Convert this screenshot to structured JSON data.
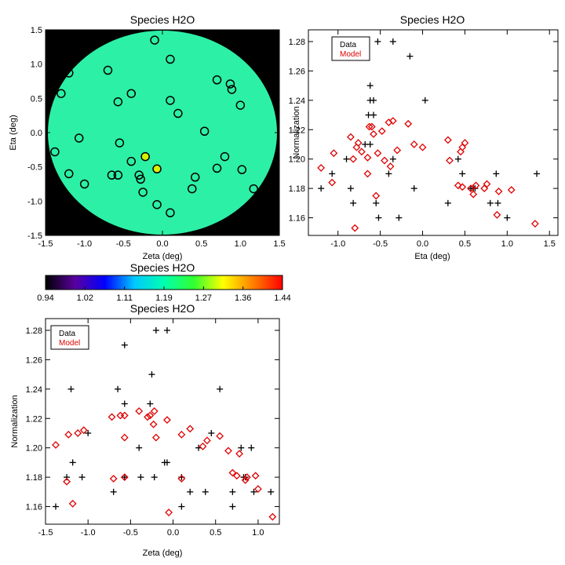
{
  "chart_data": [
    {
      "type": "scatter",
      "title": "Species H2O",
      "xlabel": "Zeta (deg)",
      "ylabel": "Eta (deg)",
      "xlim": [
        -1.5,
        1.5
      ],
      "ylim": [
        -1.5,
        1.5
      ],
      "x_ticks": [
        "-1.5",
        "-1.0",
        "-0.5",
        "0.0",
        "0.5",
        "1.0",
        "1.5"
      ],
      "y_ticks": [
        "-1.5",
        "-1.0",
        "-0.5",
        "0.0",
        "0.5",
        "1.0",
        "1.5"
      ],
      "background": "map colored by normalization, value ~1.15 (green) inside a circular field, black outside",
      "points": [
        [
          -0.1,
          1.35
        ],
        [
          0.1,
          1.07
        ],
        [
          -1.2,
          0.87
        ],
        [
          -0.7,
          0.91
        ],
        [
          0.7,
          0.77
        ],
        [
          0.87,
          0.71
        ],
        [
          0.89,
          0.63
        ],
        [
          -1.3,
          0.57
        ],
        [
          -0.4,
          0.57
        ],
        [
          -0.57,
          0.45
        ],
        [
          0.1,
          0.47
        ],
        [
          1.0,
          0.4
        ],
        [
          0.2,
          0.28
        ],
        [
          -1.07,
          -0.08
        ],
        [
          0.54,
          0.02
        ],
        [
          -0.55,
          -0.15
        ],
        [
          -1.38,
          -0.28
        ],
        [
          -0.22,
          -0.35
        ],
        [
          -0.4,
          -0.42
        ],
        [
          0.8,
          -0.35
        ],
        [
          0.7,
          -0.52
        ],
        [
          1.02,
          -0.54
        ],
        [
          -0.07,
          -0.53
        ],
        [
          -1.2,
          -0.6
        ],
        [
          -0.65,
          -0.62
        ],
        [
          -0.57,
          -0.62
        ],
        [
          -0.3,
          -0.62
        ],
        [
          -0.28,
          -0.68
        ],
        [
          0.42,
          -0.65
        ],
        [
          -1.0,
          -0.75
        ],
        [
          0.38,
          -0.82
        ],
        [
          -0.25,
          -0.87
        ],
        [
          1.17,
          -0.82
        ],
        [
          -0.07,
          -1.05
        ],
        [
          0.1,
          -1.17
        ]
      ]
    },
    {
      "type": "colorbar",
      "title": "Species H2O",
      "tick_labels": [
        "0.94",
        "1.02",
        "1.11",
        "1.19",
        "1.27",
        "1.36",
        "1.44"
      ],
      "range": [
        0.94,
        1.44
      ],
      "colormap": [
        "#000000",
        "#5a00a0",
        "#0000ff",
        "#00c8ff",
        "#00ffb0",
        "#30ff30",
        "#ffff00",
        "#ff8000",
        "#ff0000"
      ]
    },
    {
      "type": "scatter",
      "title": "Species H2O",
      "xlabel": "Eta (deg)",
      "ylabel": "Normalization",
      "xlim": [
        -1.35,
        1.6
      ],
      "ylim": [
        1.148,
        1.288
      ],
      "x_ticks": [
        "-1.0",
        "-0.5",
        "0.0",
        "0.5",
        "1.0",
        "1.5"
      ],
      "x_tick_values": [
        -1.0,
        -0.5,
        0.0,
        0.5,
        1.0,
        1.5
      ],
      "y_ticks": [
        "1.16",
        "1.18",
        "1.20",
        "1.22",
        "1.24",
        "1.26",
        "1.28"
      ],
      "y_tick_values": [
        1.16,
        1.18,
        1.2,
        1.22,
        1.24,
        1.26,
        1.28
      ],
      "legend": {
        "position": "top-left",
        "entries": [
          {
            "label": "Data",
            "color": "#000000"
          },
          {
            "label": "Model",
            "color": "#e00000"
          }
        ]
      },
      "series": [
        {
          "name": "Data",
          "color": "#000000",
          "marker": "plus",
          "points": [
            [
              -0.53,
              1.28
            ],
            [
              -0.35,
              1.28
            ],
            [
              -0.15,
              1.27
            ],
            [
              -0.62,
              1.25
            ],
            [
              -0.62,
              1.24
            ],
            [
              -0.58,
              1.24
            ],
            [
              0.03,
              1.24
            ],
            [
              -0.64,
              1.23
            ],
            [
              -0.58,
              1.23
            ],
            [
              -0.68,
              1.21
            ],
            [
              -0.62,
              1.21
            ],
            [
              -0.35,
              1.2
            ],
            [
              -0.4,
              1.19
            ],
            [
              0.42,
              1.2
            ],
            [
              -1.07,
              1.19
            ],
            [
              0.47,
              1.19
            ],
            [
              0.87,
              1.19
            ],
            [
              -1.2,
              1.18
            ],
            [
              -0.85,
              1.18
            ],
            [
              -0.1,
              1.18
            ],
            [
              0.57,
              1.18
            ],
            [
              0.6,
              1.18
            ],
            [
              0.62,
              1.18
            ],
            [
              -0.82,
              1.17
            ],
            [
              -0.55,
              1.17
            ],
            [
              0.3,
              1.17
            ],
            [
              0.8,
              1.17
            ],
            [
              0.89,
              1.17
            ],
            [
              -0.52,
              1.16
            ],
            [
              -0.28,
              1.16
            ],
            [
              1.0,
              1.16
            ],
            [
              1.35,
              1.19
            ],
            [
              -0.9,
              1.2
            ]
          ]
        },
        {
          "name": "Model",
          "color": "#e00000",
          "marker": "diamond",
          "points": [
            [
              -0.85,
              1.215
            ],
            [
              -0.76,
              1.211
            ],
            [
              -0.63,
              1.222
            ],
            [
              -0.6,
              1.222
            ],
            [
              -0.58,
              1.217
            ],
            [
              -0.48,
              1.219
            ],
            [
              -0.4,
              1.225
            ],
            [
              -0.35,
              1.226
            ],
            [
              -0.17,
              1.224
            ],
            [
              -0.1,
              1.21
            ],
            [
              0.0,
              1.208
            ],
            [
              -0.78,
              1.208
            ],
            [
              -0.72,
              1.205
            ],
            [
              -0.65,
              1.201
            ],
            [
              -0.53,
              1.204
            ],
            [
              -0.45,
              1.199
            ],
            [
              -0.38,
              1.195
            ],
            [
              -0.3,
              1.206
            ],
            [
              -0.65,
              1.19
            ],
            [
              -0.55,
              1.175
            ],
            [
              -0.82,
              1.2
            ],
            [
              -1.2,
              1.194
            ],
            [
              -1.07,
              1.184
            ],
            [
              -1.05,
              1.204
            ],
            [
              0.3,
              1.213
            ],
            [
              0.45,
              1.205
            ],
            [
              0.47,
              1.208
            ],
            [
              0.5,
              1.211
            ],
            [
              0.42,
              1.182
            ],
            [
              0.47,
              1.181
            ],
            [
              0.57,
              1.18
            ],
            [
              0.6,
              1.176
            ],
            [
              0.63,
              1.182
            ],
            [
              0.73,
              1.18
            ],
            [
              0.76,
              1.183
            ],
            [
              0.9,
              1.178
            ],
            [
              1.05,
              1.179
            ],
            [
              0.88,
              1.162
            ],
            [
              1.33,
              1.156
            ],
            [
              -0.8,
              1.153
            ],
            [
              0.32,
              1.199
            ]
          ]
        }
      ]
    },
    {
      "type": "scatter",
      "title": "Species H2O",
      "xlabel": "Zeta (deg)",
      "ylabel": "Normalization",
      "xlim": [
        -1.5,
        1.25
      ],
      "ylim": [
        1.148,
        1.288
      ],
      "x_ticks": [
        "-1.5",
        "-1.0",
        "-0.5",
        "0.0",
        "0.5",
        "1.0"
      ],
      "x_tick_values": [
        -1.5,
        -1.0,
        -0.5,
        0.0,
        0.5,
        1.0
      ],
      "y_ticks": [
        "1.16",
        "1.18",
        "1.20",
        "1.22",
        "1.24",
        "1.26",
        "1.28"
      ],
      "y_tick_values": [
        1.16,
        1.18,
        1.2,
        1.22,
        1.24,
        1.26,
        1.28
      ],
      "legend": {
        "position": "top-left",
        "entries": [
          {
            "label": "Data",
            "color": "#000000"
          },
          {
            "label": "Model",
            "color": "#e00000"
          }
        ]
      },
      "series": [
        {
          "name": "Data",
          "color": "#000000",
          "marker": "plus",
          "points": [
            [
              -0.2,
              1.28
            ],
            [
              -0.07,
              1.28
            ],
            [
              -0.57,
              1.27
            ],
            [
              -0.25,
              1.25
            ],
            [
              -1.2,
              1.24
            ],
            [
              -0.65,
              1.24
            ],
            [
              0.55,
              1.24
            ],
            [
              -0.57,
              1.23
            ],
            [
              -0.27,
              1.23
            ],
            [
              -1.0,
              1.21
            ],
            [
              0.45,
              1.21
            ],
            [
              0.3,
              1.2
            ],
            [
              0.8,
              1.2
            ],
            [
              0.92,
              1.2
            ],
            [
              -0.4,
              1.2
            ],
            [
              -0.1,
              1.19
            ],
            [
              -0.07,
              1.19
            ],
            [
              -1.18,
              1.19
            ],
            [
              0.1,
              1.18
            ],
            [
              -1.25,
              1.18
            ],
            [
              -1.07,
              1.18
            ],
            [
              -0.57,
              1.18
            ],
            [
              -0.38,
              1.18
            ],
            [
              -0.22,
              1.18
            ],
            [
              0.83,
              1.18
            ],
            [
              0.85,
              1.18
            ],
            [
              -0.7,
              1.17
            ],
            [
              0.2,
              1.17
            ],
            [
              0.38,
              1.17
            ],
            [
              0.7,
              1.17
            ],
            [
              1.15,
              1.17
            ],
            [
              0.95,
              1.17
            ],
            [
              -1.38,
              1.16
            ],
            [
              0.1,
              1.16
            ],
            [
              0.7,
              1.16
            ]
          ]
        },
        {
          "name": "Model",
          "color": "#e00000",
          "marker": "diamond",
          "points": [
            [
              -1.38,
              1.202
            ],
            [
              -1.23,
              1.209
            ],
            [
              -1.12,
              1.21
            ],
            [
              -1.05,
              1.212
            ],
            [
              -0.72,
              1.221
            ],
            [
              -0.62,
              1.222
            ],
            [
              -0.57,
              1.222
            ],
            [
              -0.4,
              1.225
            ],
            [
              -0.3,
              1.221
            ],
            [
              -0.27,
              1.222
            ],
            [
              -0.22,
              1.225
            ],
            [
              -0.23,
              1.216
            ],
            [
              -0.07,
              1.219
            ],
            [
              0.1,
              1.209
            ],
            [
              0.2,
              1.213
            ],
            [
              0.35,
              1.201
            ],
            [
              0.4,
              1.205
            ],
            [
              0.55,
              1.208
            ],
            [
              0.65,
              1.198
            ],
            [
              0.7,
              1.183
            ],
            [
              0.78,
              1.196
            ],
            [
              0.75,
              1.181
            ],
            [
              0.85,
              1.178
            ],
            [
              0.87,
              1.18
            ],
            [
              0.97,
              1.181
            ],
            [
              1.0,
              1.172
            ],
            [
              1.17,
              1.153
            ],
            [
              -1.25,
              1.177
            ],
            [
              -1.18,
              1.162
            ],
            [
              -0.7,
              1.179
            ],
            [
              -0.57,
              1.207
            ],
            [
              -0.2,
              1.207
            ],
            [
              0.1,
              1.179
            ],
            [
              -0.05,
              1.156
            ],
            [
              -0.57,
              1.18
            ]
          ]
        }
      ]
    }
  ]
}
